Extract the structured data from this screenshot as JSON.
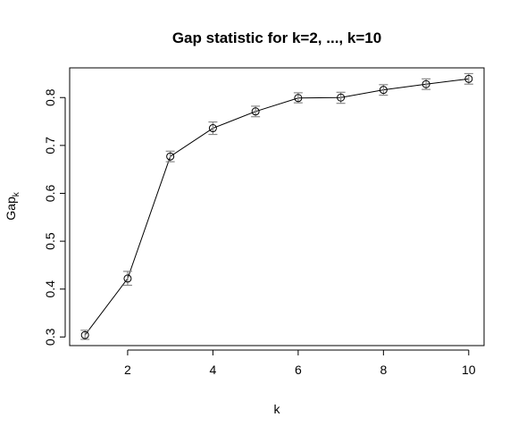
{
  "chart_data": {
    "type": "line",
    "title": "Gap statistic for k=2, ..., k=10",
    "xlabel": "k",
    "ylabel_main": "Gap",
    "ylabel_sub": "k",
    "x": [
      1,
      2,
      3,
      4,
      5,
      6,
      7,
      8,
      9,
      10
    ],
    "series": [
      {
        "values": [
          0.304,
          0.422,
          0.677,
          0.736,
          0.771,
          0.799,
          0.8,
          0.816,
          0.828,
          0.839
        ],
        "err_lower": [
          0.295,
          0.408,
          0.666,
          0.723,
          0.76,
          0.789,
          0.788,
          0.805,
          0.817,
          0.828
        ],
        "err_upper": [
          0.314,
          0.437,
          0.688,
          0.749,
          0.782,
          0.81,
          0.811,
          0.827,
          0.839,
          0.85
        ]
      }
    ],
    "xlim": [
      0.64,
      10.36
    ],
    "ylim": [
      0.282,
      0.862
    ],
    "xticks": [
      2,
      4,
      6,
      8,
      10
    ],
    "yticks": [
      0.3,
      0.4,
      0.5,
      0.6,
      0.7,
      0.8
    ],
    "xtick_labels": [
      "2",
      "4",
      "6",
      "8",
      "10"
    ],
    "ytick_labels": [
      "0.3",
      "0.4",
      "0.5",
      "0.6",
      "0.7",
      "0.8"
    ],
    "grid": false,
    "error_bar_color": "#888888",
    "line_color": "#000000",
    "marker": "open-circle"
  }
}
